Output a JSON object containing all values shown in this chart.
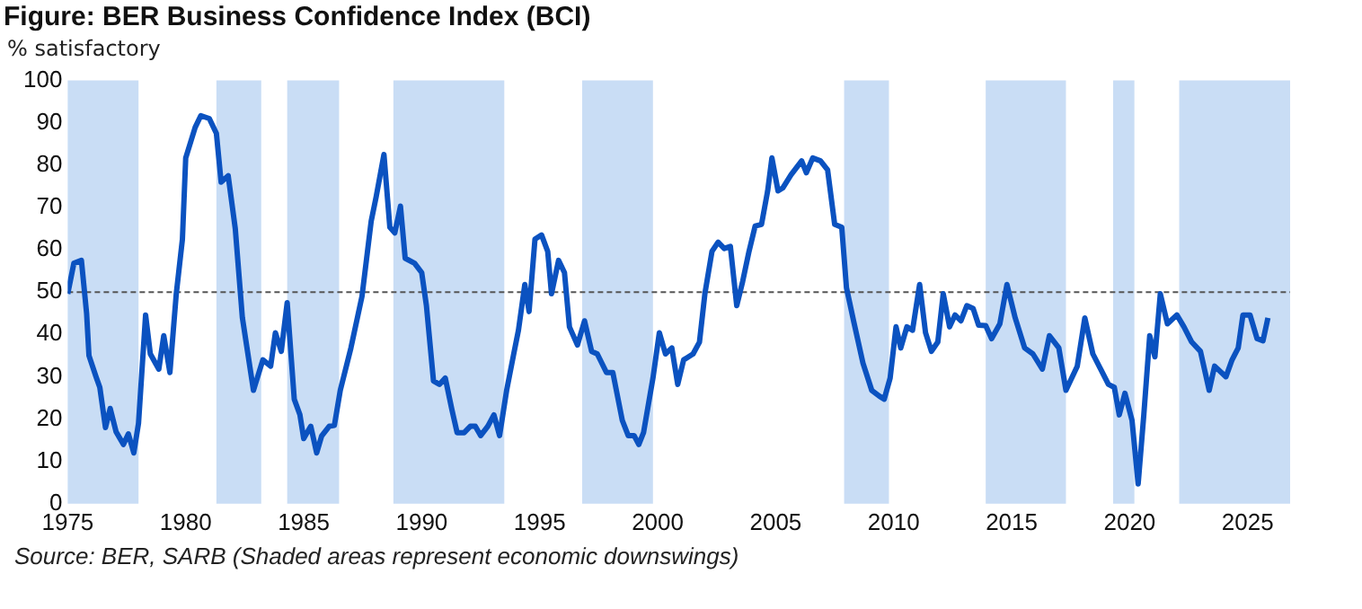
{
  "chart_data": {
    "type": "line",
    "title": "Figure: BER Business Confidence Index (BCI)",
    "subtitle": "% satisfactory",
    "annotations": [
      "Source: BER, SARB (Shaded areas represent economic downswings)"
    ],
    "xlim": [
      1975,
      2026.8
    ],
    "xticks": [
      1975,
      1980,
      1985,
      1990,
      1995,
      2000,
      2005,
      2010,
      2015,
      2020,
      2025
    ],
    "ylim": [
      0,
      100
    ],
    "yticks": [
      0,
      10,
      20,
      30,
      40,
      50,
      60,
      70,
      80,
      90,
      100
    ],
    "ref_lines": [
      {
        "axis": "y",
        "value": 50,
        "color": "#555555",
        "line_style": "dashed"
      }
    ],
    "bands": [
      {
        "axis": "x",
        "from": 1975,
        "to": 1978,
        "color": "#c9ddf5"
      },
      {
        "axis": "x",
        "from": 1981.3,
        "to": 1983.2,
        "color": "#c9ddf5"
      },
      {
        "axis": "x",
        "from": 1984.3,
        "to": 1986.5,
        "color": "#c9ddf5"
      },
      {
        "axis": "x",
        "from": 1988.8,
        "to": 1993.5,
        "color": "#c9ddf5"
      },
      {
        "axis": "x",
        "from": 1996.8,
        "to": 1999.8,
        "color": "#c9ddf5"
      },
      {
        "axis": "x",
        "from": 2007.9,
        "to": 2009.8,
        "color": "#c9ddf5"
      },
      {
        "axis": "x",
        "from": 2013.9,
        "to": 2017.3,
        "color": "#c9ddf5"
      },
      {
        "axis": "x",
        "from": 2019.3,
        "to": 2020.2,
        "color": "#c9ddf5"
      },
      {
        "axis": "x",
        "from": 2022.1,
        "to": 2026.8,
        "color": "#c9ddf5"
      }
    ],
    "legend": false,
    "marker": "none",
    "line_style": "solid",
    "series": [
      {
        "color": "#0b52c0",
        "x": [
          1975.0,
          1975.26,
          1975.58,
          1975.8,
          1975.9,
          1976.2,
          1976.36,
          1976.6,
          1976.8,
          1977.05,
          1977.36,
          1977.57,
          1977.8,
          1978.0,
          1978.3,
          1978.5,
          1978.86,
          1979.07,
          1979.33,
          1979.6,
          1979.86,
          1980.0,
          1980.4,
          1980.64,
          1981.0,
          1981.3,
          1981.5,
          1981.8,
          1982.1,
          1982.4,
          1982.87,
          1983.27,
          1983.6,
          1983.8,
          1984.05,
          1984.3,
          1984.6,
          1984.84,
          1985.0,
          1985.3,
          1985.55,
          1985.76,
          1986.08,
          1986.3,
          1986.55,
          1987.0,
          1987.47,
          1987.86,
          1988.07,
          1988.4,
          1988.65,
          1988.86,
          1989.1,
          1989.3,
          1989.7,
          1990.0,
          1990.2,
          1990.5,
          1990.75,
          1991.0,
          1991.27,
          1991.5,
          1991.8,
          1992.06,
          1992.27,
          1992.5,
          1992.8,
          1993.06,
          1993.3,
          1993.6,
          1993.9,
          1994.1,
          1994.37,
          1994.55,
          1994.8,
          1995.08,
          1995.34,
          1995.5,
          1995.8,
          1996.05,
          1996.26,
          1996.6,
          1996.9,
          1997.2,
          1997.44,
          1997.83,
          1998.1,
          1998.5,
          1998.75,
          1999.0,
          1999.2,
          1999.4,
          1999.8,
          2000.07,
          2000.33,
          2000.6,
          2000.85,
          2001.1,
          2001.5,
          2001.77,
          2002.0,
          2002.3,
          2002.56,
          2002.82,
          2003.08,
          2003.35,
          2003.6,
          2003.87,
          2004.13,
          2004.4,
          2004.66,
          2004.84,
          2005.1,
          2005.3,
          2005.65,
          2006.1,
          2006.3,
          2006.57,
          2006.9,
          2007.2,
          2007.5,
          2007.8,
          2008.0,
          2008.3,
          2008.7,
          2009.07,
          2009.4,
          2009.6,
          2009.85,
          2010.1,
          2010.3,
          2010.56,
          2010.8,
          2011.1,
          2011.35,
          2011.6,
          2011.87,
          2012.1,
          2012.37,
          2012.6,
          2012.85,
          2013.1,
          2013.37,
          2013.6,
          2013.9,
          2014.15,
          2014.5,
          2014.8,
          2015.15,
          2015.55,
          2015.9,
          2016.3,
          2016.6,
          2017.0,
          2017.3,
          2017.78,
          2018.1,
          2018.44,
          2018.77,
          2019.1,
          2019.35,
          2019.56,
          2019.8,
          2020.1,
          2020.36,
          2020.6,
          2020.85,
          2021.07,
          2021.3,
          2021.6,
          2022.0,
          2022.3,
          2022.63,
          2023.0,
          2023.37,
          2023.6,
          2024.08,
          2024.34,
          2024.6,
          2024.8,
          2025.1,
          2025.4,
          2025.65,
          2025.86
        ],
        "values": [
          49.6,
          56.8,
          57.5,
          45,
          35,
          30,
          27.5,
          18,
          22.5,
          17,
          14,
          16.5,
          12,
          19,
          44.6,
          35.4,
          31.8,
          39.7,
          31,
          49.6,
          62.5,
          81.7,
          88.9,
          91.7,
          91,
          87.5,
          76,
          77.5,
          65,
          44,
          26.8,
          34,
          32.5,
          40.4,
          36,
          47.5,
          24.7,
          21,
          15.4,
          18.3,
          12,
          16,
          18.3,
          18.5,
          26.8,
          36.8,
          49,
          66.8,
          72.5,
          82.5,
          65.3,
          64,
          70.3,
          58,
          56.8,
          54.6,
          46.8,
          29,
          28.2,
          29.7,
          22.5,
          16.8,
          16.8,
          18.3,
          18.3,
          16.1,
          18.3,
          21,
          16.1,
          26.8,
          35.4,
          41,
          51.8,
          45.4,
          62.5,
          63.5,
          59.6,
          49.6,
          57.5,
          54.6,
          41.8,
          37.5,
          43.2,
          36,
          35.4,
          31,
          31,
          19.7,
          16.1,
          16.1,
          14,
          16.8,
          29.7,
          40.4,
          35.4,
          36.8,
          28.2,
          34,
          35.4,
          38.2,
          49.6,
          59.6,
          61.8,
          60.3,
          60.8,
          46.8,
          52.5,
          59.6,
          65.6,
          66,
          73.9,
          81.7,
          73.9,
          74.6,
          77.7,
          81,
          78.2,
          81.7,
          81,
          78.9,
          66,
          65.3,
          51,
          43.2,
          33.2,
          26.8,
          25.4,
          24.7,
          29.7,
          41.8,
          36.8,
          41.8,
          41,
          51.8,
          40.4,
          36,
          38.2,
          49.6,
          41.8,
          44.6,
          43.2,
          46.8,
          46.1,
          42.2,
          42.1,
          39,
          42.5,
          51.8,
          43.9,
          36.8,
          35.4,
          31.8,
          39.7,
          36.8,
          26.8,
          32.5,
          43.9,
          35.4,
          31.8,
          28.2,
          27.5,
          21,
          26.1,
          19.7,
          4.7,
          21,
          39.7,
          34.7,
          49.6,
          42.5,
          44.6,
          41.8,
          38.2,
          36,
          26.8,
          32.5,
          30,
          34,
          36.8,
          44.6,
          44.6,
          39,
          38.5,
          43.9
        ]
      }
    ]
  }
}
